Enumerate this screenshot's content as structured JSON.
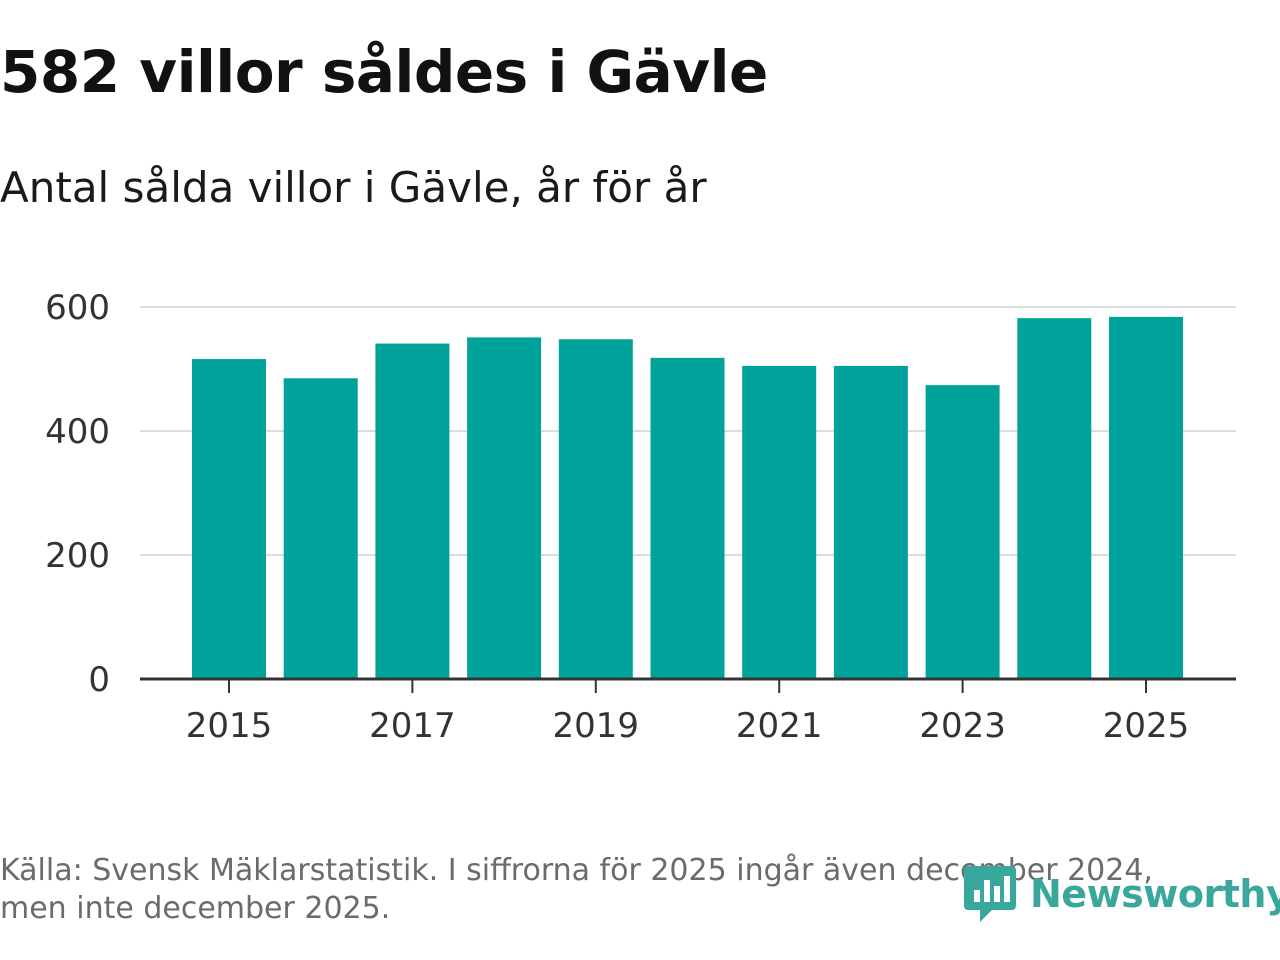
{
  "title": "582 villor såldes i Gävle",
  "subtitle": "Antal sålda villor i Gävle, år för år",
  "footer": {
    "source_line1": "Källa: Svensk Mäklarstatistik. I siffrorna för 2025 ingår även december 2024,",
    "source_line2": "men inte december 2025."
  },
  "logo": {
    "text": "Newsworthy",
    "color": "#3aa79c",
    "icon": "newsworthy-logo-icon"
  },
  "colors": {
    "bar": "#00a39b",
    "grid": "#dddddd",
    "axis": "#333333"
  },
  "chart_data": {
    "type": "bar",
    "title": "582 villor såldes i Gävle",
    "subtitle": "Antal sålda villor i Gävle, år för år",
    "categories": [
      2015,
      2016,
      2017,
      2018,
      2019,
      2020,
      2021,
      2022,
      2023,
      2024,
      2025
    ],
    "values": [
      516,
      485,
      541,
      551,
      548,
      518,
      505,
      505,
      474,
      582,
      584
    ],
    "ylim": [
      0,
      600
    ],
    "yticks": [
      0,
      200,
      400,
      600
    ],
    "xticks": [
      2015,
      2017,
      2019,
      2021,
      2023,
      2025
    ],
    "grid": true,
    "legend": false,
    "xlabel": "",
    "ylabel": ""
  }
}
